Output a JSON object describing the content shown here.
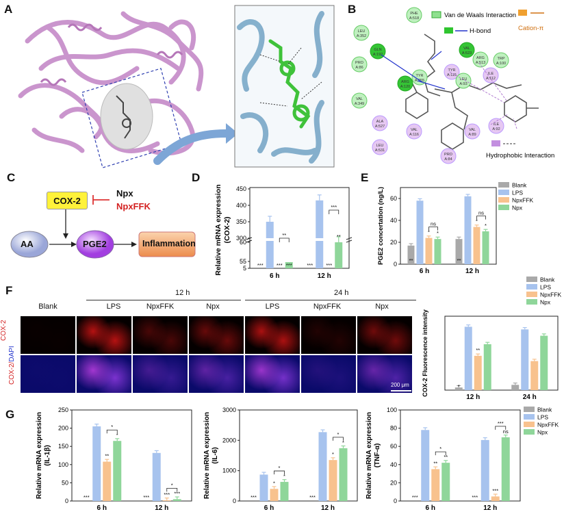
{
  "panels": {
    "a": "A",
    "b": "B",
    "c": "C",
    "d": "D",
    "e": "E",
    "f": "F",
    "g": "G"
  },
  "colors": {
    "blank": "#a9a9a9",
    "lps": "#a7c3ee",
    "npxffk": "#f8c28e",
    "npx": "#8fd69a",
    "protein": "#c58ac8",
    "docking": "#7aa8c8",
    "ligand": "#3fc23a",
    "arrow": "#7da6d6"
  },
  "panelB": {
    "legend": {
      "vdw": "Van de Waals Interaction",
      "hbond": "H-bond",
      "cation": "Cation-π",
      "hydrophobic": "Hydrophobic Interaction"
    },
    "residues": [
      {
        "name": "PHE\nA:518",
        "t": "vdw"
      },
      {
        "name": "LEU\nA:352",
        "t": "vdw"
      },
      {
        "name": "GLN\nA:192",
        "t": "hb"
      },
      {
        "name": "PRO\nA:86",
        "t": "vdw"
      },
      {
        "name": "TYR\nA:355",
        "t": "vdw"
      },
      {
        "name": "ARG\nA:120",
        "t": "hb"
      },
      {
        "name": "VAL\nA:349",
        "t": "vdw"
      },
      {
        "name": "VAL\nA:523",
        "t": "hb"
      },
      {
        "name": "ARG\nA:513",
        "t": "vdw"
      },
      {
        "name": "ILE\nA:112",
        "t": "hy"
      },
      {
        "name": "TRP\nA:100",
        "t": "vdw"
      },
      {
        "name": "TYR\nA:115",
        "t": "hy"
      },
      {
        "name": "LEU\nA:93",
        "t": "vdw"
      },
      {
        "name": "ALA\nA:527",
        "t": "hy"
      },
      {
        "name": "VAL\nA:116",
        "t": "hy"
      },
      {
        "name": "LEU\nA:531",
        "t": "hy"
      },
      {
        "name": "VAL\nA:89",
        "t": "hy"
      },
      {
        "name": "ILE\nA:92",
        "t": "hy"
      },
      {
        "name": "PRO\nA:84",
        "t": "hy"
      }
    ]
  },
  "panelC": {
    "cox2": "COX-2",
    "npx": "Npx",
    "npxffk": "NpxFFK",
    "aa": "AA",
    "pge2": "PGE2",
    "inflammation": "Inflammation"
  },
  "panelF": {
    "time12": "12 h",
    "time24": "24 h",
    "cols": [
      "Blank",
      "LPS",
      "NpxFFK",
      "Npx",
      "LPS",
      "NpxFFK",
      "Npx"
    ],
    "row1": "COX-2",
    "row2a": "COX-2/",
    "row2b": "DAPI",
    "scale": "200 μm"
  },
  "chart_data": [
    {
      "id": "D",
      "type": "bar",
      "ylabel": "Relative mRNA expression\n(COX-2)",
      "categories": [
        "6 h",
        "12 h"
      ],
      "series": [
        {
          "name": "Blank",
          "values": [
            1,
            1
          ]
        },
        {
          "name": "LPS",
          "values": [
            350,
            415
          ]
        },
        {
          "name": "NpxFFK",
          "values": [
            1.2,
            1.1
          ]
        },
        {
          "name": "Npx",
          "values": [
            50,
            60
          ]
        }
      ],
      "yticks": [
        "5",
        "55",
        "60",
        "300",
        "350",
        "400",
        "450"
      ],
      "sig": [
        "***",
        "***",
        "***",
        "**",
        "***",
        "***",
        "**",
        "***"
      ]
    },
    {
      "id": "E",
      "type": "bar",
      "ylabel": "PGE2 concertation (ng/L)",
      "categories": [
        "6 h",
        "12 h"
      ],
      "ylim": [
        0,
        70
      ],
      "yticks": [
        "0",
        "20",
        "40",
        "60"
      ],
      "series": [
        {
          "name": "Blank",
          "values": [
            17,
            23
          ]
        },
        {
          "name": "LPS",
          "values": [
            58,
            62
          ]
        },
        {
          "name": "NpxFFK",
          "values": [
            24,
            34
          ]
        },
        {
          "name": "Npx",
          "values": [
            23,
            30
          ]
        }
      ],
      "legend": [
        "Blank",
        "LPS",
        "NpxFFK",
        "Npx"
      ],
      "sig": [
        "**",
        "*",
        "*",
        "ns",
        "**",
        "*",
        "*",
        "ns"
      ]
    },
    {
      "id": "F",
      "type": "bar",
      "ylabel": "COX-2 Fluorescence intensity",
      "categories": [
        "12 h",
        "24 h"
      ],
      "ylim": [
        0,
        140
      ],
      "series": [
        {
          "name": "Blank",
          "values": [
            5,
            10
          ]
        },
        {
          "name": "LPS",
          "values": [
            120,
            115
          ]
        },
        {
          "name": "NpxFFK",
          "values": [
            65,
            55
          ]
        },
        {
          "name": "Npx",
          "values": [
            87,
            103
          ]
        }
      ],
      "legend": [
        "Blank",
        "LPS",
        "NpxFFK",
        "Npx"
      ],
      "sig": [
        "*",
        "**"
      ]
    },
    {
      "id": "G1",
      "type": "bar",
      "ylabel": "Relative mRNA expression\n(IL-1β)",
      "categories": [
        "6 h",
        "12 h"
      ],
      "ylim": [
        0,
        250
      ],
      "yticks": [
        "0",
        "50",
        "100",
        "150",
        "200",
        "250"
      ],
      "series": [
        {
          "name": "Blank",
          "values": [
            0,
            0
          ]
        },
        {
          "name": "LPS",
          "values": [
            205,
            132
          ]
        },
        {
          "name": "NpxFFK",
          "values": [
            108,
            2
          ]
        },
        {
          "name": "Npx",
          "values": [
            165,
            5
          ]
        }
      ],
      "sig": [
        "***",
        "**",
        "*",
        "*",
        "***",
        "***",
        "***",
        "*"
      ]
    },
    {
      "id": "G2",
      "type": "bar",
      "ylabel": "Relative mRNA expression\n(IL-6)",
      "categories": [
        "6 h",
        "12 h"
      ],
      "ylim": [
        0,
        3000
      ],
      "yticks": [
        "0",
        "1000",
        "2000",
        "3000"
      ],
      "series": [
        {
          "name": "Blank",
          "values": [
            0,
            0
          ]
        },
        {
          "name": "LPS",
          "values": [
            870,
            2270
          ]
        },
        {
          "name": "NpxFFK",
          "values": [
            400,
            1350
          ]
        },
        {
          "name": "Npx",
          "values": [
            630,
            1740
          ]
        }
      ],
      "sig": [
        "***",
        "*",
        "*",
        "*",
        "***",
        "*",
        "*",
        "*"
      ]
    },
    {
      "id": "G3",
      "type": "bar",
      "ylabel": "Relative mRNA expression\n(TNF-α)",
      "categories": [
        "6 h",
        "12 h"
      ],
      "ylim": [
        0,
        100
      ],
      "yticks": [
        "0",
        "20",
        "40",
        "60",
        "80",
        "100"
      ],
      "series": [
        {
          "name": "Blank",
          "values": [
            0,
            0
          ]
        },
        {
          "name": "LPS",
          "values": [
            78,
            67
          ]
        },
        {
          "name": "NpxFFK",
          "values": [
            35,
            5
          ]
        },
        {
          "name": "Npx",
          "values": [
            42,
            70
          ]
        }
      ],
      "legend": [
        "Blank",
        "LPS",
        "NpxFFK",
        "Npx"
      ],
      "sig": [
        "***",
        "**",
        "**",
        "*",
        "***",
        "***",
        "ns",
        "***"
      ]
    }
  ]
}
